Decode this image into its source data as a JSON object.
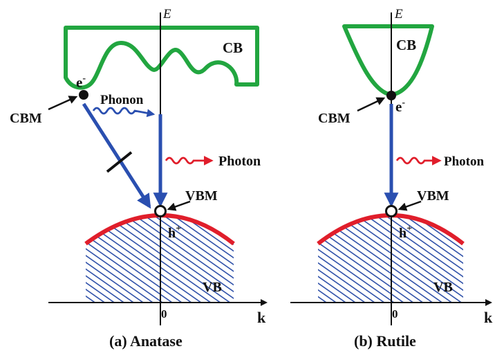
{
  "colors": {
    "band": "#22a640",
    "arrow_blue": "#2a4fb0",
    "photon_red": "#e01e2b",
    "vb_hatch": "#2d4fa8",
    "ink": "#111111"
  },
  "axes": {
    "energy": "E",
    "momentum": "k",
    "origin": "0"
  },
  "anatase": {
    "caption": "(a) Anatase",
    "cb": "CB",
    "vb": "VB",
    "electron": "e",
    "electron_sup": "-",
    "hole": "h",
    "hole_sup": "+",
    "cbm": "CBM",
    "vbm": "VBM",
    "phonon": "Phonon",
    "photon": "Photon"
  },
  "rutile": {
    "caption": "(b) Rutile",
    "cb": "CB",
    "vb": "VB",
    "electron": "e",
    "electron_sup": "-",
    "hole": "h",
    "hole_sup": "+",
    "cbm": "CBM",
    "vbm": "VBM",
    "photon": "Photon"
  }
}
